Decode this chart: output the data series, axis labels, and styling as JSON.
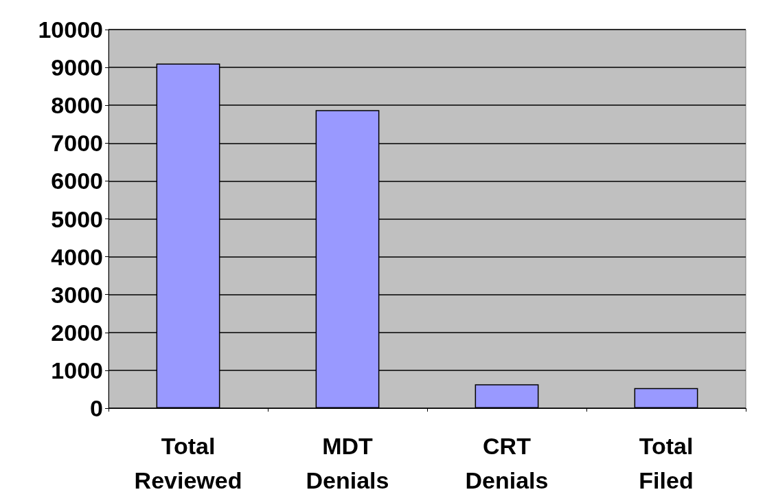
{
  "chart_data": {
    "type": "bar",
    "categories": [
      "Total Reviewed",
      "MDT Denials",
      "CRT Denials",
      "Total Filed"
    ],
    "values": [
      9100,
      7870,
      630,
      530
    ],
    "color": "#9999ff",
    "ylim": [
      0,
      10000
    ],
    "yticks": [
      0,
      1000,
      2000,
      3000,
      4000,
      5000,
      6000,
      7000,
      8000,
      9000,
      10000
    ],
    "grid": "y"
  }
}
